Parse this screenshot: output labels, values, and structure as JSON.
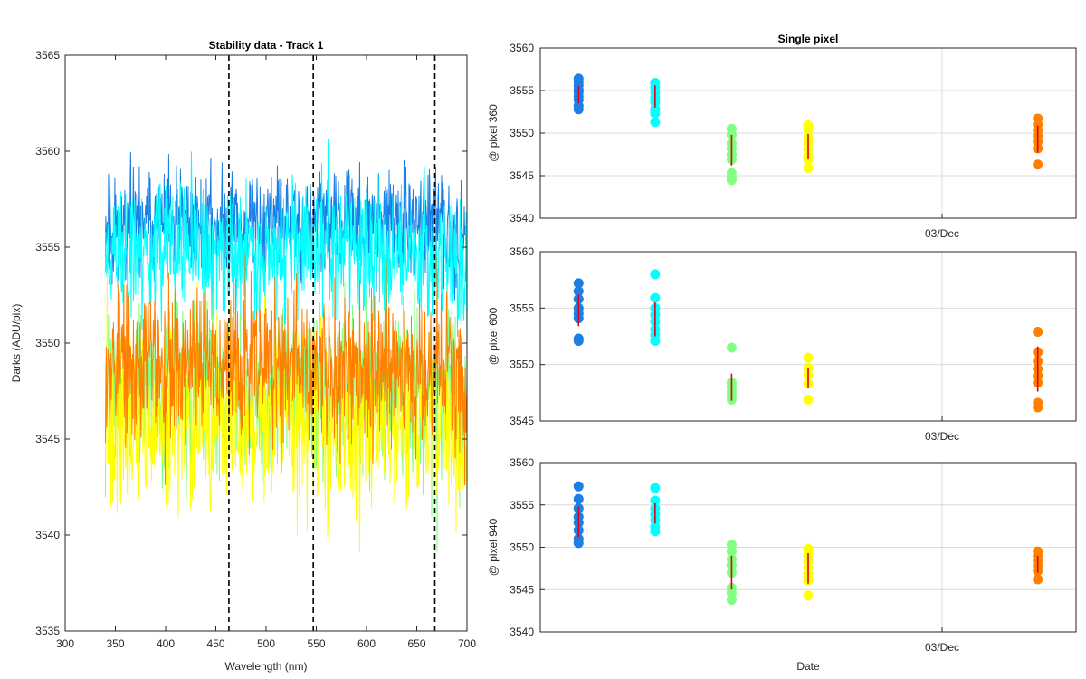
{
  "chart_data": [
    {
      "type": "line",
      "title": "Stability data - Track 1",
      "xlabel": "Wavelength (nm)",
      "ylabel": "Darks (ADU/pix)",
      "xlim": [
        300,
        700
      ],
      "ylim": [
        3535,
        3565
      ],
      "xticks": [
        "300",
        "350",
        "400",
        "450",
        "500",
        "550",
        "600",
        "650",
        "700"
      ],
      "yticks": [
        "3535",
        "3540",
        "3545",
        "3550",
        "3555",
        "3560",
        "3565"
      ],
      "grid": false,
      "x_range": [
        340,
        700
      ],
      "vlines": [
        463,
        547,
        668
      ],
      "series": [
        {
          "color": "#1a80e6",
          "mean": 3556.2,
          "spread": 3.2,
          "seed": 11
        },
        {
          "color": "#00ffff",
          "mean": 3554.8,
          "spread": 4.0,
          "seed": 23
        },
        {
          "color": "#80ff80",
          "mean": 3547.6,
          "spread": 5.0,
          "seed": 37
        },
        {
          "color": "#ffff00",
          "mean": 3546.0,
          "spread": 5.2,
          "seed": 41
        },
        {
          "color": "#ff8000",
          "mean": 3548.9,
          "spread": 4.6,
          "seed": 53
        }
      ]
    },
    {
      "type": "scatter",
      "title": "Single pixel",
      "xlabel": "",
      "ylabel": "@ pixel 360",
      "xticks": [
        "03/Dec"
      ],
      "ylim": [
        3540,
        3560
      ],
      "yticks": [
        "3540",
        "3545",
        "3550",
        "3555",
        "3560"
      ],
      "grid": true,
      "groups": [
        {
          "x": 0.5,
          "color": "#1a80e6",
          "mean": 3554.5,
          "sd": 1.0,
          "values": [
            3556.4,
            3556.0,
            3555.6,
            3555.1,
            3554.8,
            3554.3,
            3553.9,
            3553.2,
            3552.8
          ]
        },
        {
          "x": 1.5,
          "color": "#00ffff",
          "mean": 3554.3,
          "sd": 1.3,
          "values": [
            3555.9,
            3555.4,
            3554.8,
            3554.2,
            3553.6,
            3552.8,
            3552.3,
            3551.3
          ]
        },
        {
          "x": 2.5,
          "color": "#80ff80",
          "mean": 3548.0,
          "sd": 1.8,
          "values": [
            3550.5,
            3549.8,
            3548.8,
            3548.2,
            3547.5,
            3546.9,
            3545.3,
            3544.8,
            3544.5
          ]
        },
        {
          "x": 3.5,
          "color": "#ffff00",
          "mean": 3548.4,
          "sd": 1.5,
          "values": [
            3550.9,
            3550.4,
            3549.5,
            3548.8,
            3548.1,
            3547.3,
            3546.9,
            3545.9
          ]
        },
        {
          "x": 6.5,
          "color": "#ff8000",
          "mean": 3549.3,
          "sd": 1.6,
          "values": [
            3551.7,
            3551.0,
            3550.3,
            3549.7,
            3549.0,
            3548.2,
            3546.3
          ]
        }
      ]
    },
    {
      "type": "scatter",
      "title": "",
      "xlabel": "",
      "ylabel": "@ pixel 600",
      "xticks": [
        "03/Dec"
      ],
      "ylim": [
        3545,
        3560
      ],
      "yticks": [
        "3545",
        "3550",
        "3555",
        "3560"
      ],
      "grid": true,
      "groups": [
        {
          "x": 0.5,
          "color": "#1a80e6",
          "mean": 3554.8,
          "sd": 1.4,
          "values": [
            3557.2,
            3556.5,
            3555.8,
            3555.0,
            3554.5,
            3554.1,
            3552.3,
            3552.1
          ]
        },
        {
          "x": 1.5,
          "color": "#00ffff",
          "mean": 3554.0,
          "sd": 1.5,
          "values": [
            3558.0,
            3555.9,
            3555.0,
            3554.4,
            3553.8,
            3553.1,
            3552.6,
            3552.1
          ]
        },
        {
          "x": 2.5,
          "color": "#80ff80",
          "mean": 3548.0,
          "sd": 1.2,
          "values": [
            3551.5,
            3548.4,
            3548.0,
            3547.6,
            3547.2,
            3546.9
          ]
        },
        {
          "x": 3.5,
          "color": "#ffff00",
          "mean": 3548.8,
          "sd": 0.9,
          "values": [
            3550.6,
            3549.7,
            3549.1,
            3548.3,
            3546.9
          ]
        },
        {
          "x": 6.5,
          "color": "#ff8000",
          "mean": 3549.6,
          "sd": 2.0,
          "values": [
            3552.9,
            3551.1,
            3550.3,
            3549.6,
            3549.0,
            3548.4,
            3546.6,
            3546.2
          ]
        }
      ]
    },
    {
      "type": "scatter",
      "title": "",
      "xlabel": "Date",
      "ylabel": "@ pixel 940",
      "xticks": [
        "03/Dec"
      ],
      "ylim": [
        3540,
        3560
      ],
      "yticks": [
        "3540",
        "3545",
        "3550",
        "3555",
        "3560"
      ],
      "grid": true,
      "groups": [
        {
          "x": 0.5,
          "color": "#1a80e6",
          "mean": 3553.0,
          "sd": 1.8,
          "values": [
            3557.2,
            3555.7,
            3554.6,
            3553.6,
            3552.9,
            3552.0,
            3551.0,
            3550.5
          ]
        },
        {
          "x": 1.5,
          "color": "#00ffff",
          "mean": 3554.0,
          "sd": 1.2,
          "values": [
            3557.0,
            3555.5,
            3554.6,
            3553.9,
            3553.2,
            3552.4,
            3551.9
          ]
        },
        {
          "x": 2.5,
          "color": "#80ff80",
          "mean": 3547.0,
          "sd": 2.0,
          "values": [
            3550.3,
            3549.5,
            3548.6,
            3547.9,
            3547.0,
            3545.2,
            3544.6,
            3543.8
          ]
        },
        {
          "x": 3.5,
          "color": "#ffff00",
          "mean": 3547.5,
          "sd": 1.8,
          "values": [
            3549.8,
            3549.1,
            3548.4,
            3547.6,
            3546.8,
            3546.1,
            3544.3
          ]
        },
        {
          "x": 6.5,
          "color": "#ff8000",
          "mean": 3548.0,
          "sd": 1.0,
          "values": [
            3549.5,
            3549.0,
            3548.4,
            3547.8,
            3547.2,
            3546.2
          ]
        }
      ]
    }
  ]
}
